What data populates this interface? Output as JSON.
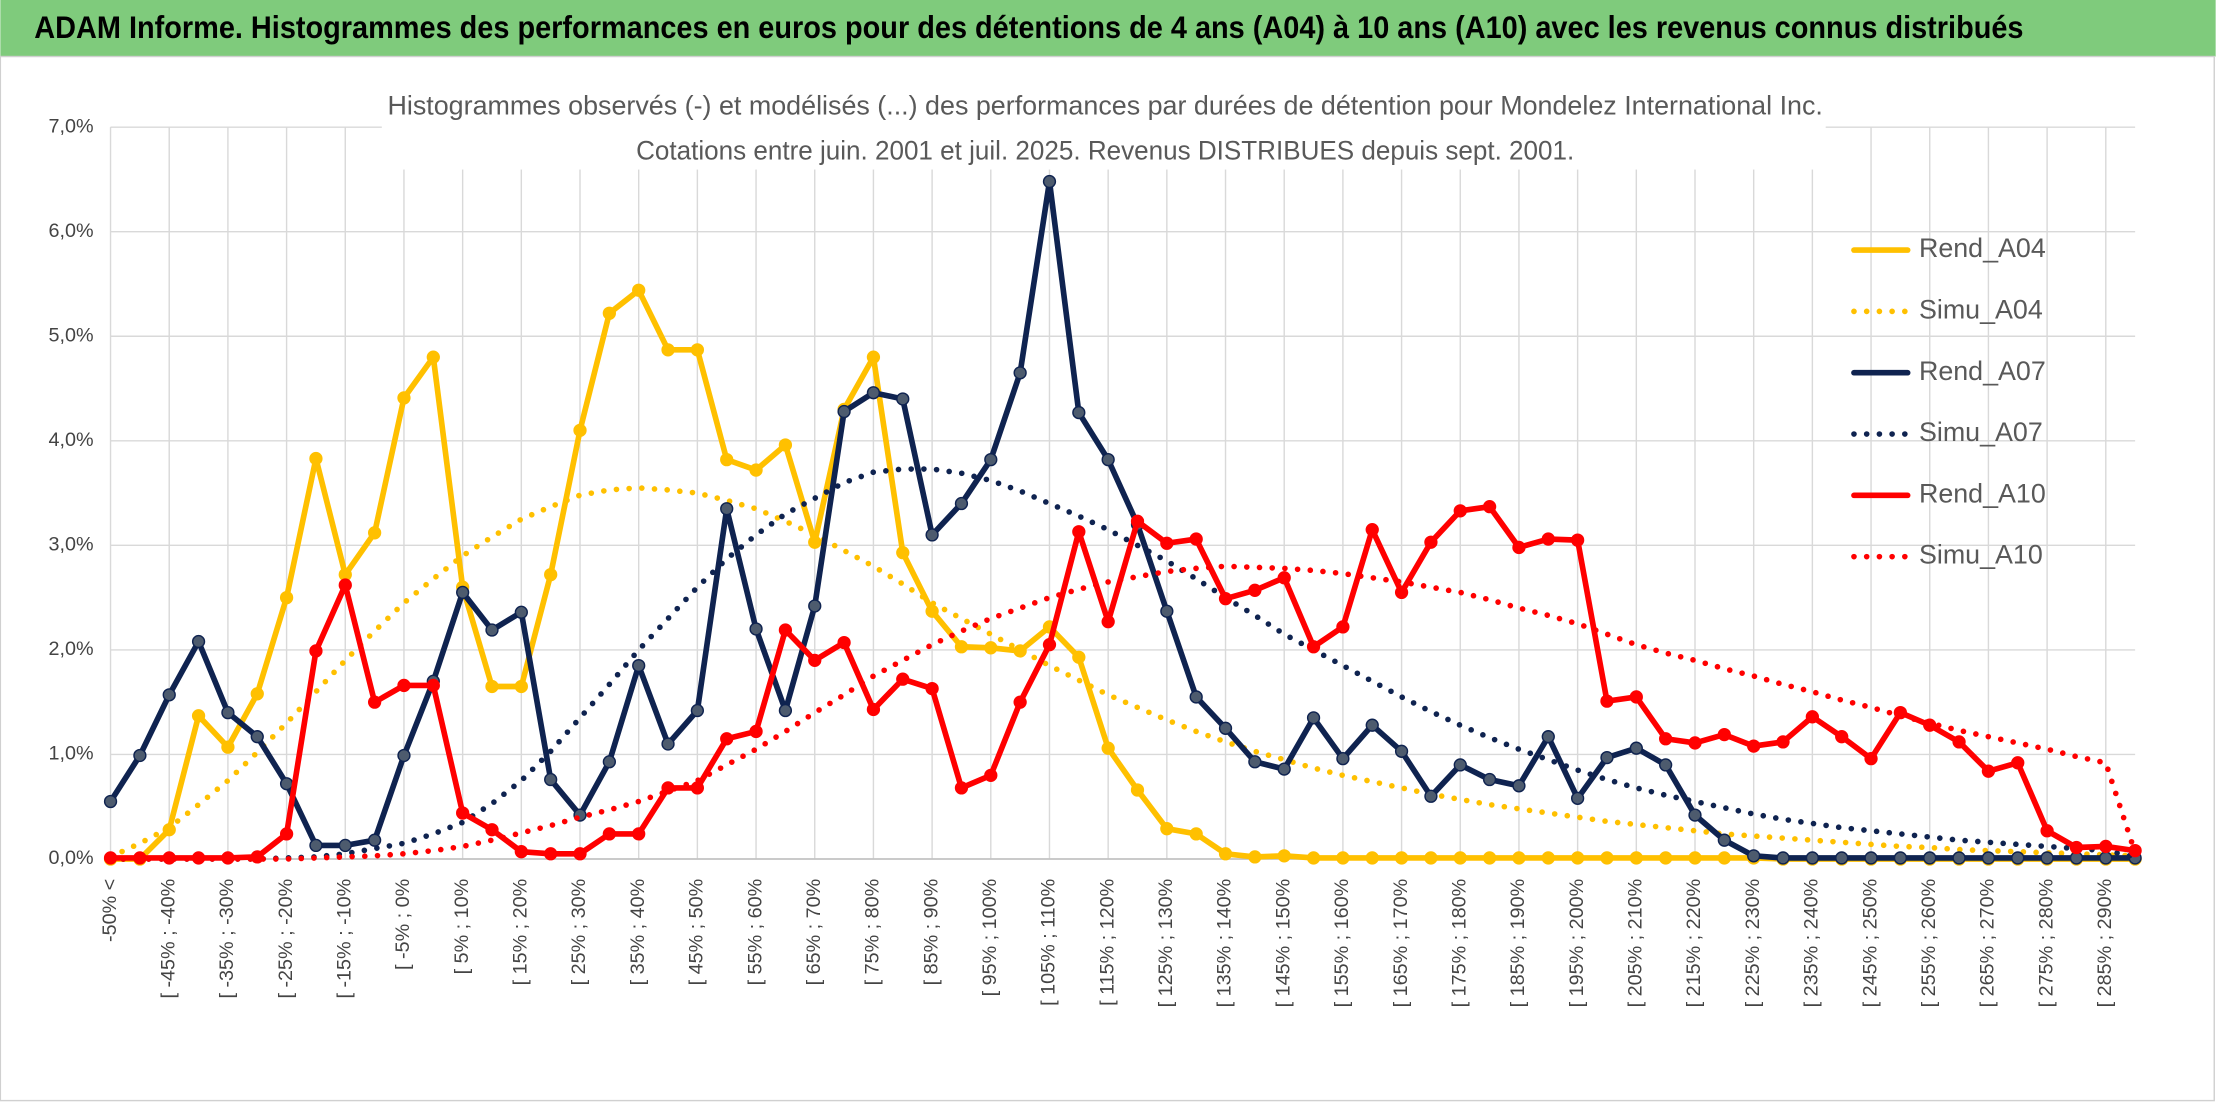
{
  "chart_data": {
    "type": "line",
    "banner": "ADAM Informe. Histogrammes des performances en euros pour des détentions de 4 ans (A04) à 10 ans (A10) avec les revenus connus distribués",
    "title": "Histogrammes observés (-) et modélisés (...) des performances par durées de détention pour Mondelez International Inc.",
    "subtitle": "Cotations entre juin. 2001 et juil. 2025. Revenus DISTRIBUES depuis sept. 2001.",
    "categories": [
      "-50% <",
      null,
      "[ -45% ; -40%",
      null,
      "[ -35% ; -30%",
      null,
      "[ -25% ; -20%",
      null,
      "[ -15% ; -10%",
      null,
      "[ -5% ; 0%",
      null,
      "[ 5% ; 10%",
      null,
      "[ 15% ; 20%",
      null,
      "[ 25% ; 30%",
      null,
      "[ 35% ; 40%",
      null,
      "[ 45% ; 50%",
      null,
      "[ 55% ; 60%",
      null,
      "[ 65% ; 70%",
      null,
      "[ 75% ; 80%",
      null,
      "[ 85% ; 90%",
      null,
      "[ 95% ; 100%",
      null,
      "[ 105% ; 110%",
      null,
      "[ 115% ; 120%",
      null,
      "[ 125% ; 130%",
      null,
      "[ 135% ; 140%",
      null,
      "[ 145% ; 150%",
      null,
      "[ 155% ; 160%",
      null,
      "[ 165% ; 170%",
      null,
      "[ 175% ; 180%",
      null,
      "[ 185% ; 190%",
      null,
      "[ 195% ; 200%",
      null,
      "[ 205% ; 210%",
      null,
      "[ 215% ; 220%",
      null,
      "[ 225% ; 230%",
      null,
      "[ 235% ; 240%",
      null,
      "[ 245% ; 250%",
      null,
      "[ 255% ; 260%",
      null,
      "[ 265% ; 270%",
      null,
      "[ 275% ; 280%",
      null,
      "[ 285% ; 290%",
      null
    ],
    "ylim": [
      0,
      7
    ],
    "yticks": [
      {
        "value": 0,
        "label": "0,0%"
      },
      {
        "value": 1,
        "label": "1,0%"
      },
      {
        "value": 2,
        "label": "2,0%"
      },
      {
        "value": 3,
        "label": "3,0%"
      },
      {
        "value": 4,
        "label": "4,0%"
      },
      {
        "value": 5,
        "label": "5,0%"
      },
      {
        "value": 6,
        "label": "6,0%"
      },
      {
        "value": 7,
        "label": "7,0%"
      }
    ],
    "grid": true,
    "legend": "right",
    "series": [
      {
        "name": "Rend_A04",
        "color": "#ffc000",
        "style": "solid",
        "values": [
          0,
          0,
          0.28,
          1.37,
          1.07,
          1.58,
          2.5,
          3.83,
          2.72,
          3.12,
          4.41,
          4.8,
          2.6,
          1.65,
          1.65,
          2.72,
          4.1,
          5.22,
          5.44,
          4.87,
          4.87,
          3.82,
          3.72,
          3.96,
          3.03,
          4.3,
          4.8,
          2.93,
          2.37,
          2.03,
          2.02,
          1.99,
          2.22,
          1.93,
          1.06,
          0.66,
          0.29,
          0.24,
          0.05,
          0.02,
          0.03,
          0.01,
          0.01,
          0.01,
          0.01,
          0.01,
          0.01,
          0.01,
          0.01,
          0.01,
          0.01,
          0.01,
          0.01,
          0.01,
          0.01,
          0.01,
          0.01,
          0,
          0,
          0,
          0,
          0,
          0,
          0,
          0,
          0,
          0,
          0,
          0,
          0
        ]
      },
      {
        "name": "Simu_A04",
        "color": "#ffc000",
        "style": "dotted",
        "values": [
          0.02,
          0.15,
          0.3,
          0.52,
          0.75,
          1.02,
          1.3,
          1.6,
          1.9,
          2.18,
          2.45,
          2.68,
          2.9,
          3.08,
          3.25,
          3.37,
          3.48,
          3.53,
          3.55,
          3.53,
          3.5,
          3.43,
          3.35,
          3.23,
          3.1,
          2.95,
          2.8,
          2.63,
          2.45,
          2.3,
          2.15,
          2.0,
          1.85,
          1.71,
          1.57,
          1.45,
          1.33,
          1.22,
          1.12,
          1.03,
          0.95,
          0.87,
          0.8,
          0.74,
          0.68,
          0.62,
          0.57,
          0.52,
          0.48,
          0.44,
          0.4,
          0.36,
          0.33,
          0.3,
          0.27,
          0.24,
          0.22,
          0.2,
          0.18,
          0.16,
          0.14,
          0.12,
          0.11,
          0.09,
          0.08,
          0.07,
          0.06,
          0.05,
          0.04,
          0.03
        ]
      },
      {
        "name": "Rend_A07",
        "color": "#0f2350",
        "style": "solid",
        "values": [
          0.55,
          0.99,
          1.57,
          2.08,
          1.4,
          1.17,
          0.72,
          0.13,
          0.13,
          0.18,
          0.99,
          1.7,
          2.55,
          2.19,
          2.36,
          0.76,
          0.42,
          0.93,
          1.85,
          1.1,
          1.42,
          3.35,
          2.2,
          1.42,
          2.42,
          4.28,
          4.46,
          4.4,
          3.1,
          3.4,
          3.82,
          4.65,
          6.48,
          4.27,
          3.82,
          3.2,
          2.37,
          1.55,
          1.25,
          0.93,
          0.86,
          1.35,
          0.96,
          1.28,
          1.03,
          0.6,
          0.9,
          0.76,
          0.7,
          1.17,
          0.58,
          0.97,
          1.06,
          0.9,
          0.42,
          0.18,
          0.03,
          0.01,
          0.01,
          0.01,
          0.01,
          0.01,
          0.01,
          0.01,
          0.01,
          0.01,
          0.01,
          0.01,
          0.01,
          0.01
        ]
      },
      {
        "name": "Simu_A07",
        "color": "#0f2350",
        "style": "dotted",
        "values": [
          0,
          0,
          0,
          0,
          0,
          0,
          0.01,
          0.02,
          0.05,
          0.1,
          0.15,
          0.24,
          0.35,
          0.53,
          0.75,
          1.03,
          1.35,
          1.67,
          2.0,
          2.3,
          2.6,
          2.87,
          3.1,
          3.3,
          3.45,
          3.6,
          3.7,
          3.73,
          3.73,
          3.69,
          3.62,
          3.52,
          3.4,
          3.28,
          3.15,
          3.0,
          2.85,
          2.68,
          2.5,
          2.33,
          2.15,
          2.0,
          1.85,
          1.7,
          1.55,
          1.41,
          1.28,
          1.16,
          1.05,
          0.95,
          0.85,
          0.76,
          0.68,
          0.61,
          0.55,
          0.49,
          0.43,
          0.38,
          0.34,
          0.3,
          0.27,
          0.24,
          0.21,
          0.18,
          0.16,
          0.14,
          0.12,
          0.1,
          0.08,
          0.02
        ]
      },
      {
        "name": "Rend_A10",
        "color": "#ff0000",
        "style": "solid",
        "values": [
          0.01,
          0.01,
          0.01,
          0.01,
          0.01,
          0.02,
          0.24,
          1.99,
          2.62,
          1.5,
          1.66,
          1.66,
          0.44,
          0.28,
          0.07,
          0.05,
          0.05,
          0.24,
          0.24,
          0.68,
          0.68,
          1.15,
          1.22,
          2.19,
          1.9,
          2.07,
          1.43,
          1.72,
          1.63,
          0.68,
          0.8,
          1.5,
          2.05,
          3.13,
          2.27,
          3.23,
          3.02,
          3.06,
          2.49,
          2.57,
          2.69,
          2.03,
          2.22,
          3.15,
          2.55,
          3.03,
          3.33,
          3.37,
          2.98,
          3.06,
          3.05,
          1.51,
          1.55,
          1.15,
          1.11,
          1.19,
          1.08,
          1.12,
          1.36,
          1.17,
          0.96,
          1.4,
          1.28,
          1.12,
          0.84,
          0.92,
          0.27,
          0.11,
          0.12,
          0.08
        ]
      },
      {
        "name": "Simu_A10",
        "color": "#ff0000",
        "style": "dotted",
        "values": [
          0,
          0,
          0,
          0,
          0,
          0,
          0,
          0.01,
          0.02,
          0.03,
          0.05,
          0.08,
          0.12,
          0.18,
          0.25,
          0.32,
          0.4,
          0.47,
          0.55,
          0.65,
          0.75,
          0.9,
          1.05,
          1.22,
          1.4,
          1.57,
          1.75,
          1.9,
          2.05,
          2.18,
          2.3,
          2.4,
          2.5,
          2.58,
          2.65,
          2.7,
          2.75,
          2.78,
          2.8,
          2.79,
          2.78,
          2.76,
          2.73,
          2.69,
          2.65,
          2.6,
          2.55,
          2.48,
          2.4,
          2.33,
          2.25,
          2.15,
          2.05,
          1.97,
          1.9,
          1.82,
          1.75,
          1.67,
          1.6,
          1.52,
          1.45,
          1.37,
          1.3,
          1.23,
          1.17,
          1.11,
          1.05,
          0.98,
          0.92,
          0.06
        ]
      }
    ]
  }
}
